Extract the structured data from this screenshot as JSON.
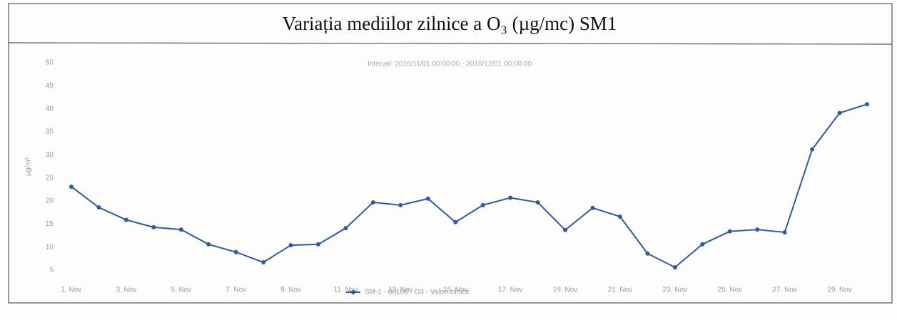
{
  "chart_data": {
    "type": "line",
    "title": "Variația mediilor zilnice a O₃ (µg/mc) SM1",
    "subtitle": "Interval: 2016/11/01 00:00:00 - 2016/12/01 00:00:00",
    "y_label": "µg/m³",
    "categories": [
      "1. Nov",
      null,
      "3. Nov",
      null,
      "5. Nov",
      null,
      "7. Nov",
      null,
      "9. Nov",
      null,
      "11. Nov",
      null,
      "13. Nov",
      null,
      "15. Nov",
      null,
      "17. Nov",
      null,
      "19. Nov",
      null,
      "21. Nov",
      null,
      "23. Nov",
      null,
      "25. Nov",
      null,
      "27. Nov",
      null,
      "29. Nov",
      null
    ],
    "series": [
      {
        "name": "SM-1 - 08108 - O3 - Valori zilnice",
        "color": "#2f5b9e",
        "values": [
          23.1,
          18.6,
          15.9,
          14.3,
          13.8,
          10.6,
          8.9,
          6.7,
          10.4,
          10.6,
          14.1,
          19.7,
          19.1,
          20.5,
          15.4,
          19.1,
          20.7,
          19.7,
          13.7,
          18.5,
          16.6,
          8.6,
          5.6,
          10.6,
          13.4,
          13.8,
          13.2,
          31.2,
          39.1,
          41
        ]
      }
    ],
    "ylim": [
      5,
      50
    ],
    "yticks": [
      5,
      10,
      15,
      20,
      25,
      30,
      35,
      40,
      45,
      50
    ],
    "grid": false
  }
}
